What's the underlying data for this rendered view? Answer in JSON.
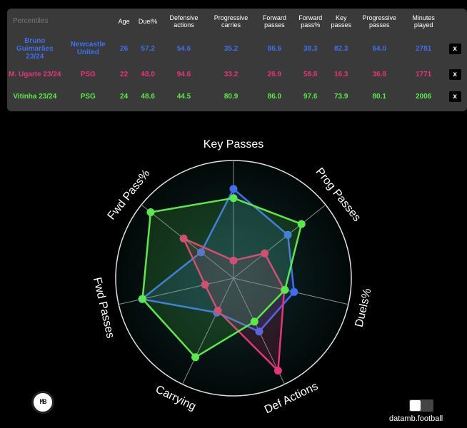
{
  "table": {
    "headers": [
      "Percentiles",
      "",
      "Age",
      "Duel%",
      "Defensive actions",
      "Progressive carries",
      "Forward passes",
      "Forward pass%",
      "Key passes",
      "Progressive passes",
      "Minutes played"
    ],
    "close_label": "x",
    "rows": [
      {
        "player": "Bruno Guimarães 23/24",
        "team": "Newcastle United",
        "age": "26",
        "duel_pct": "57.2",
        "def_actions": "54.6",
        "prog_carries": "35.2",
        "fwd_passes": "86.6",
        "fwd_pass_pct": "38.3",
        "key_passes": "82.3",
        "prog_passes": "64.0",
        "minutes": "2781",
        "color": "#3f6ef0"
      },
      {
        "player": "M. Ugarte 23/24",
        "team": "PSG",
        "age": "22",
        "duel_pct": "48.0",
        "def_actions": "94.6",
        "prog_carries": "33.2",
        "fwd_passes": "26.9",
        "fwd_pass_pct": "58.8",
        "key_passes": "16.3",
        "prog_passes": "36.8",
        "minutes": "1771",
        "color": "#e8337a"
      },
      {
        "player": "Vitinha 23/24",
        "team": "PSG",
        "age": "24",
        "duel_pct": "48.6",
        "def_actions": "44.5",
        "prog_carries": "80.9",
        "fwd_passes": "86.0",
        "fwd_pass_pct": "97.6",
        "key_passes": "73.9",
        "prog_passes": "80.1",
        "minutes": "2006",
        "color": "#5ae84a"
      }
    ]
  },
  "chart_data": {
    "type": "radar",
    "axes": [
      "Key Passes",
      "Prog Passes",
      "Duels%",
      "Def Actions",
      "Carrying",
      "Fwd Passes",
      "Fwd Pass%"
    ],
    "range": [
      0,
      100
    ],
    "series": [
      {
        "name": "Bruno Guimarães 23/24",
        "color": "#3f6ef0",
        "values": [
          82.3,
          64.0,
          57.2,
          54.6,
          35.2,
          86.6,
          38.3
        ]
      },
      {
        "name": "M. Ugarte 23/24",
        "color": "#e8337a",
        "values": [
          16.3,
          36.8,
          48.0,
          94.6,
          33.2,
          26.9,
          58.8
        ]
      },
      {
        "name": "Vitinha 23/24",
        "color": "#5ae84a",
        "values": [
          73.9,
          80.1,
          48.6,
          44.5,
          80.9,
          86.0,
          97.6
        ]
      }
    ]
  },
  "logo": {
    "text": "MB"
  },
  "credit": "datamb.football"
}
